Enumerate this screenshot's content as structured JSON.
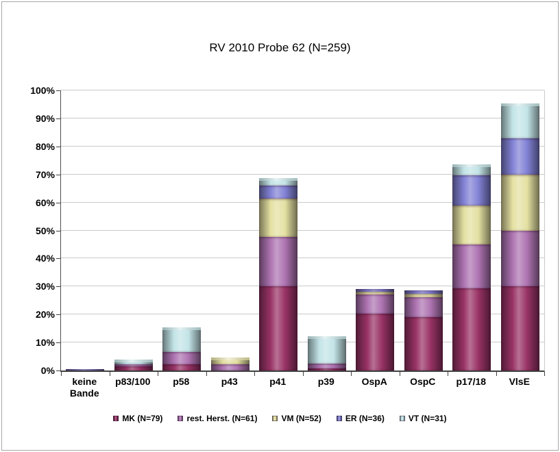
{
  "window": {
    "background": "#ffffff",
    "border_color": "#a6a6a6"
  },
  "chart_data": {
    "type": "bar",
    "stacked": true,
    "title": "RV 2010 Probe 62 (N=259)",
    "categories": [
      "keine Bande",
      "p83/100",
      "p58",
      "p43",
      "p41",
      "p39",
      "OspA",
      "OspC",
      "p17/18",
      "VlsE"
    ],
    "series": [
      {
        "name": "MK  (N=79)",
        "key": "mk",
        "color": "#993366",
        "values": [
          0,
          1.5,
          2.3,
          0,
          30.0,
          0.8,
          20.2,
          19.0,
          29.3,
          30.0
        ]
      },
      {
        "name": "rest. Herst. (N=61)",
        "key": "rest-herst",
        "color": "#AE74B2",
        "values": [
          0,
          0.8,
          4.3,
          2.3,
          17.7,
          1.6,
          6.9,
          7.2,
          15.7,
          19.8
        ]
      },
      {
        "name": "VM (N=52)",
        "key": "vm",
        "color": "#E4E0A2",
        "values": [
          0,
          0,
          0,
          2.3,
          13.7,
          0,
          1.1,
          1.2,
          13.9,
          20.2
        ]
      },
      {
        "name": "ER (N=36)",
        "key": "er",
        "color": "#8282D6",
        "values": [
          0.4,
          0,
          0,
          0,
          4.6,
          0,
          0.8,
          1.2,
          10.7,
          12.9
        ]
      },
      {
        "name": "VT (N=31)",
        "key": "vt",
        "color": "#C3E4E7",
        "values": [
          0,
          1.5,
          8.9,
          0,
          2.6,
          9.9,
          0,
          0,
          3.9,
          12.5
        ]
      }
    ],
    "y_axis": {
      "min": 0,
      "max": 100,
      "step": 10,
      "tick_labels": [
        "0%",
        "10%",
        "20%",
        "30%",
        "40%",
        "50%",
        "60%",
        "70%",
        "80%",
        "90%",
        "100%"
      ]
    },
    "xlabel": "",
    "ylabel": "",
    "grid": true,
    "legend_position": "bottom"
  }
}
